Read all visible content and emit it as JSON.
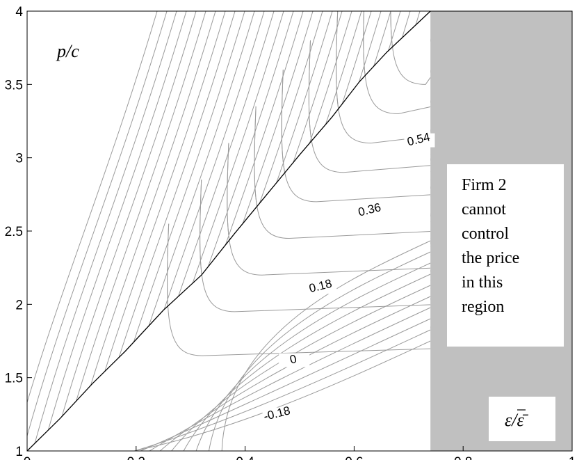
{
  "chart_data": {
    "type": "contour",
    "xlim": [
      0,
      1
    ],
    "ylim": [
      1,
      4
    ],
    "x_ticks": [
      "0",
      "0.2",
      "0.4",
      "0.6",
      "0.8",
      "1"
    ],
    "y_ticks": [
      "1",
      "1.5",
      "2",
      "2.5",
      "3",
      "3.5",
      "4"
    ],
    "ylabel": "p/c",
    "xlabel": "ε/ε̄",
    "boundary_line": {
      "x": [
        0,
        0.06,
        0.12,
        0.18,
        0.25,
        0.32,
        0.38,
        0.44,
        0.5,
        0.56,
        0.61,
        0.66,
        0.7,
        0.74
      ],
      "y": [
        1,
        1.22,
        1.46,
        1.68,
        1.96,
        2.2,
        2.48,
        2.75,
        3.02,
        3.28,
        3.52,
        3.72,
        3.86,
        4
      ]
    },
    "shaded_region": {
      "x_from": 0.74,
      "x_to": 1,
      "color": "#c0c0c0"
    },
    "contour_labels": [
      {
        "text": "0.54",
        "x": 0.72,
        "y": 3.1
      },
      {
        "text": "0.36",
        "x": 0.63,
        "y": 2.62
      },
      {
        "text": "0.18",
        "x": 0.54,
        "y": 2.1
      },
      {
        "text": "0",
        "x": 0.49,
        "y": 1.6
      },
      {
        "text": "-0.18",
        "x": 0.46,
        "y": 1.23
      }
    ],
    "annotation": "Firm 2\ncannot\ncontrol\nthe price\nin this\nregion",
    "grid": false,
    "line_color": "#000000",
    "contour_color": "#9a9a9a"
  }
}
